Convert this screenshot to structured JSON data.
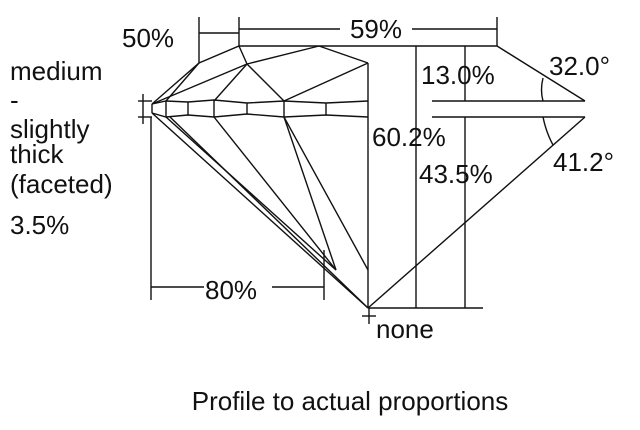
{
  "diagram": {
    "caption": "Profile to actual proportions",
    "girdle_label": [
      "medium",
      "-",
      "slightly",
      "thick",
      "(faceted)",
      "3.5%"
    ],
    "crown_angle_label": "50%",
    "table_label": "59%",
    "crown_height_label": "13.0%",
    "crown_angle": "32.0°",
    "total_depth_label": "60.2%",
    "pavilion_depth_label": "43.5%",
    "pavilion_angle": "41.2°",
    "lower_half_label": "80%",
    "culet_label": "none",
    "line_color": "#111111"
  }
}
